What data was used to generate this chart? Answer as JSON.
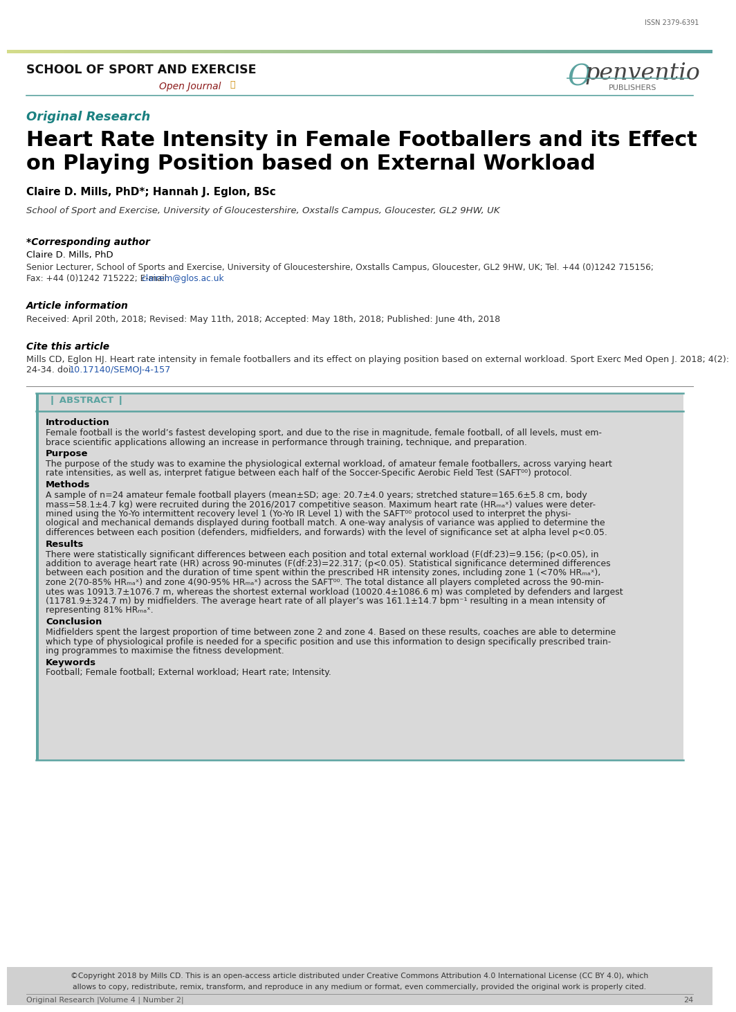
{
  "issn": "ISSN 2379-6391",
  "journal_name": "SCHOOL OF SPORT AND EXERCISE",
  "open_journal": "Open Journal",
  "publisher_o": "O",
  "publisher_rest": "penventio",
  "publishers_text": "PUBLISHERS",
  "section_label": "Original Research",
  "title_line1": "Heart Rate Intensity in Female Footballers and its Effect",
  "title_line2": "on Playing Position based on External Workload",
  "authors": "Claire D. Mills, PhD*; Hannah J. Eglon, BSc",
  "affiliation": "School of Sport and Exercise, University of Gloucestershire, Oxstalls Campus, Gloucester, GL2 9HW, UK",
  "corresponding_label": "*Corresponding author",
  "corresponding_name": "Claire D. Mills, PhD",
  "corresponding_detail1": "Senior Lecturer, School of Sports and Exercise, University of Gloucestershire, Oxstalls Campus, Gloucester, GL2 9HW, UK; Tel. +44 (0)1242 715156;",
  "corresponding_fax": "Fax: +44 (0)1242 715222; E-mail: ",
  "email_text": "clairem@glos.ac.uk",
  "article_info_label": "Article information",
  "article_info_dates": "Received: April 20th, 2018; Revised: May 11th, 2018; Accepted: May 18th, 2018; Published: June 4th, 2018",
  "cite_label": "Cite this article",
  "cite_line1": "Mills CD, Eglon HJ. Heart rate intensity in female footballers and its effect on playing position based on external workload. Sport Exerc Med Open J. 2018; 4(2):",
  "cite_line2": "24-34. doi: ",
  "doi_text": "10.17140/SEMOJ-4-157",
  "abstract_label": "ABSTRACT",
  "intro_label": "Introduction",
  "intro_text": "Female football is the world’s fastest developing sport, and due to the rise in magnitude, female football, of all levels, must em-\nbrace scientific applications allowing an increase in performance through training, technique, and preparation.",
  "purpose_label": "Purpose",
  "purpose_text": "The purpose of the study was to examine the physiological external workload, of amateur female footballers, across varying heart\nrate intensities, as well as, interpret fatigue between each half of the Soccer-Specific Aerobic Field Test (SAFT⁰⁰) protocol.",
  "methods_label": "Methods",
  "methods_text": "A sample of n=24 amateur female football players (mean±SD; age: 20.7±4.0 years; stretched stature=165.6±5.8 cm, body\nmass=58.1±4.7 kg) were recruited during the 2016/2017 competitive season. Maximum heart rate (HRₘₐˣ) values were deter-\nmined using the Yo-Yo intermittent recovery level 1 (Yo-Yo IR Level 1) with the SAFT⁰⁰ protocol used to interpret the physi-\nological and mechanical demands displayed during football match. A one-way analysis of variance was applied to determine the\ndifferences between each position (defenders, midfielders, and forwards) with the level of significance set at alpha level p<0.05.",
  "results_label": "Results",
  "results_text": "There were statistically significant differences between each position and total external workload (F(df:23)=9.156; (p<0.05), in\naddition to average heart rate (HR) across 90-minutes (F(df:23)=22.317; (p<0.05). Statistical significance determined differences\nbetween each position and the duration of time spent within the prescribed HR intensity zones, including zone 1 (<70% HRₘₐˣ),\nzone 2(70-85% HRₘₐˣ) and zone 4(90-95% HRₘₐˣ) across the SAFT⁰⁰. The total distance all players completed across the 90-min-\nutes was 10913.7±1076.7 m, whereas the shortest external workload (10020.4±1086.6 m) was completed by defenders and largest\n(11781.9±324.7 m) by midfielders. The average heart rate of all player’s was 161.1±14.7 bpm⁻¹ resulting in a mean intensity of\nrepresenting 81% HRₘₐˣ.",
  "conclusion_label": "Conclusion",
  "conclusion_text": "Midfielders spent the largest proportion of time between zone 2 and zone 4. Based on these results, coaches are able to determine\nwhich type of physiological profile is needed for a specific position and use this information to design specifically prescribed train-\ning programmes to maximise the fitness development.",
  "keywords_label": "Keywords",
  "keywords_text": "Football; Female football; External workload; Heart rate; Intensity.",
  "footer_line1": "©Copyright 2018 by Mills CD. This is an open-access article distributed under Creative Commons Attribution 4.0 International License (CC BY 4.0), which",
  "footer_line2": "allows to copy, redistribute, remix, transform, and reproduce in any medium or format, even commercially, provided the original work is properly cited.",
  "footer_bottom_left": "Original Research |Volume 4 | Number 2|",
  "footer_page": "24",
  "bg_color": "#ffffff",
  "teal_color": "#5ba3a0",
  "blue_link_color": "#2255aa",
  "abstract_bg": "#d9d9d9",
  "footer_bg": "#d0d0d0"
}
